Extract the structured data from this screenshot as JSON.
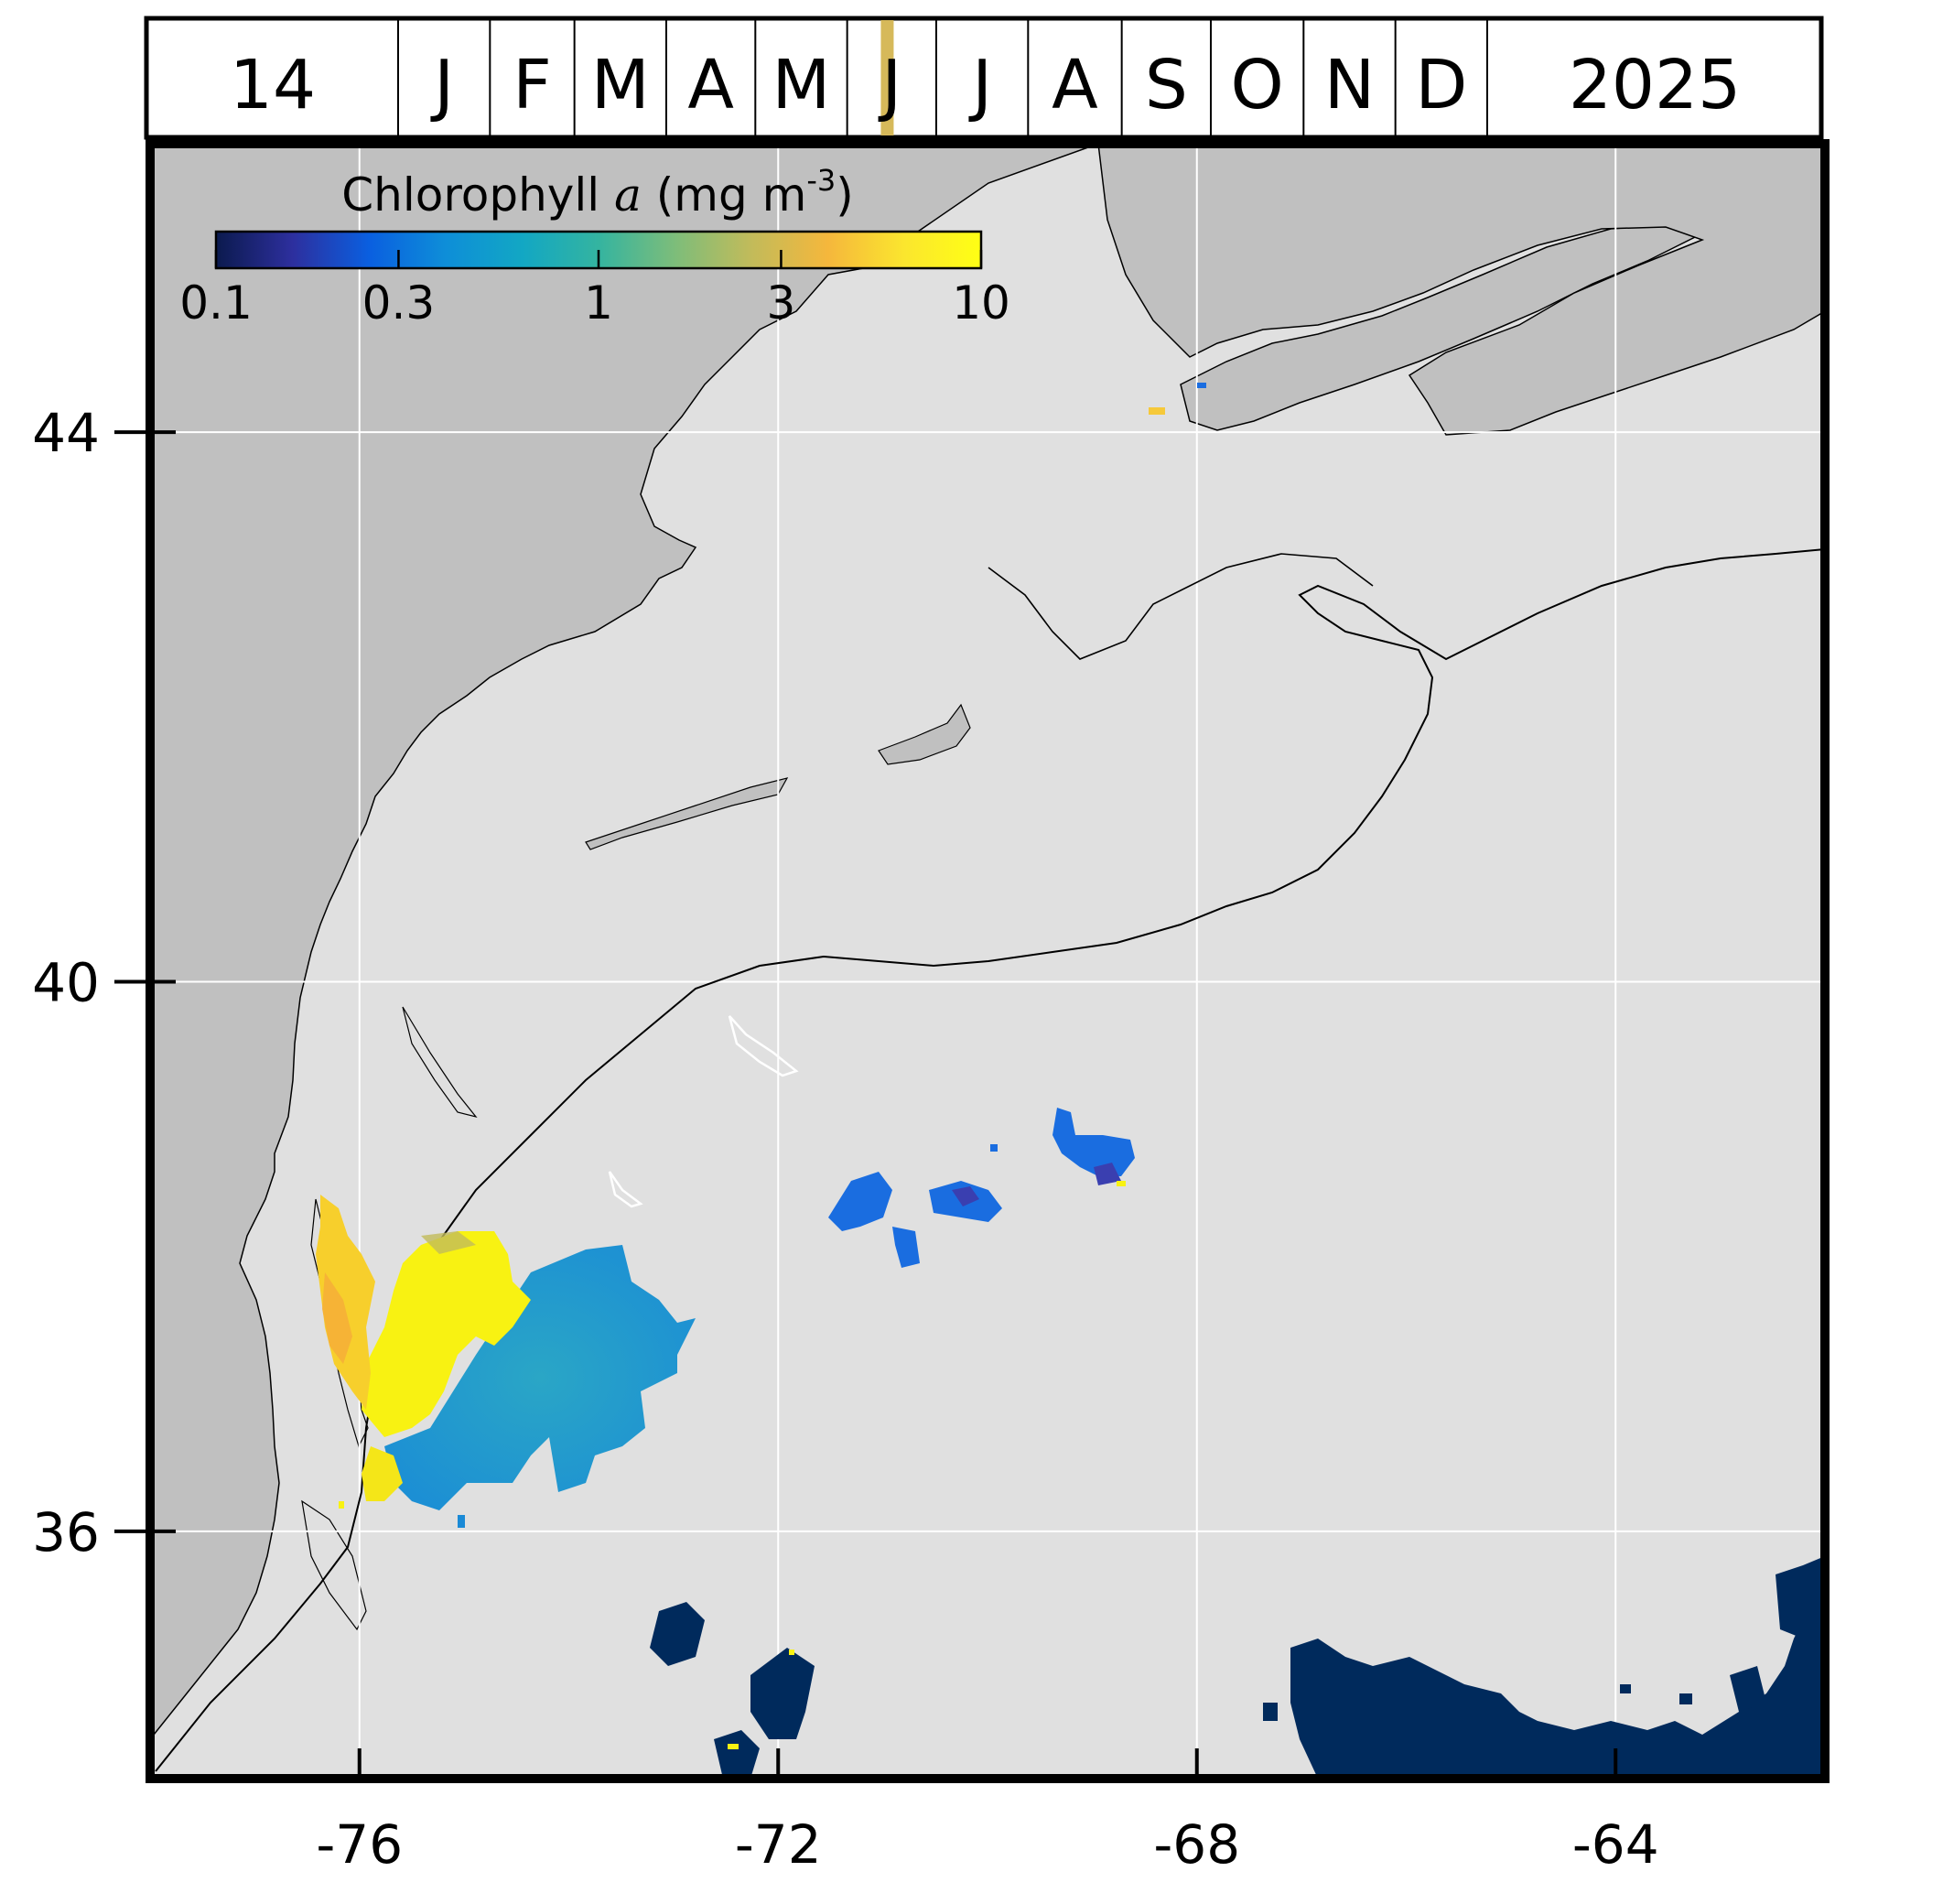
{
  "header": {
    "day": "14",
    "months": [
      "J",
      "F",
      "M",
      "A",
      "M",
      "J",
      "J",
      "A",
      "S",
      "O",
      "N",
      "D"
    ],
    "year": "2025",
    "current_month_index": 5,
    "current_month_fraction": 0.45,
    "marker_color": "#d6b95a"
  },
  "colorbar": {
    "title_prefix": "Chlorophyll ",
    "title_italic": "a",
    "title_units_prefix": " (mg m",
    "title_units_exponent": "-3",
    "title_units_suffix": ")",
    "tick_labels": [
      "0.1",
      "0.3",
      "1",
      "3",
      "10"
    ],
    "tick_values": [
      0.1,
      0.3,
      1,
      3,
      10
    ],
    "scale": "log",
    "range": [
      0.1,
      10
    ],
    "colormap": [
      "#0b1a4e",
      "#2d2f9e",
      "#0a5fe0",
      "#0e8ed8",
      "#12a7c4",
      "#34b4a0",
      "#7dbd7a",
      "#c2bb5a",
      "#f5b73c",
      "#fbe62e",
      "#ffff14"
    ]
  },
  "map": {
    "x_ticks": [
      "-76",
      "-72",
      "-68",
      "-64"
    ],
    "x_tick_values": [
      -76,
      -72,
      -68,
      -64
    ],
    "y_ticks": [
      "44",
      "40",
      "36"
    ],
    "y_tick_values": [
      44,
      40,
      36
    ],
    "lon_range": [
      -78,
      -62
    ],
    "lat_range": [
      34.2,
      46.1
    ],
    "grid": true,
    "land_color": "#c0c0c0",
    "ocean_color": "#e0e0e0",
    "no_data_region_color": "#002a5c"
  }
}
